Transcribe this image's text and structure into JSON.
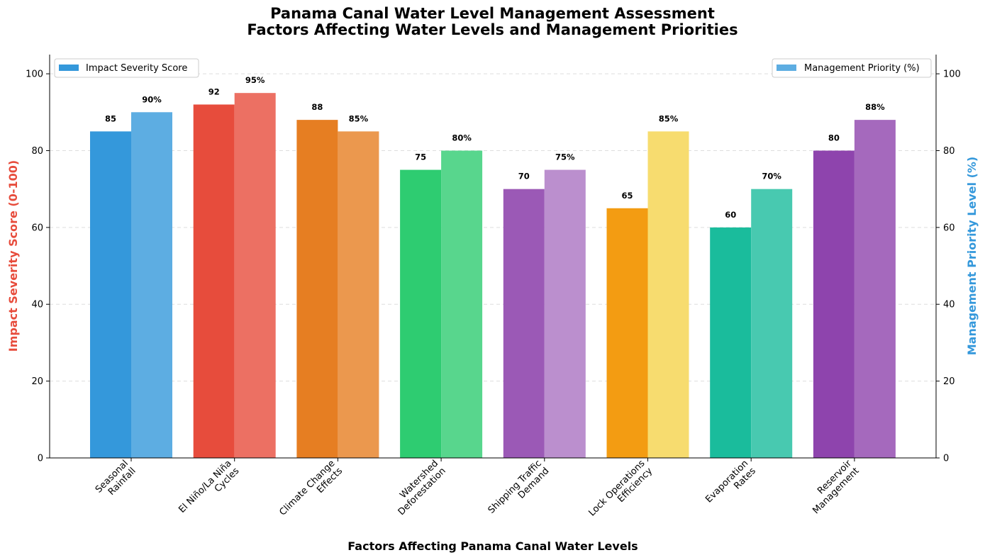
{
  "chart_data": {
    "type": "bar",
    "title": "Panama Canal Water Level Management Assessment",
    "subtitle": "Factors Affecting Water Levels and Management Priorities",
    "xlabel": "Factors Affecting Panama Canal Water Levels",
    "ylabel_left": "Impact Severity Score (0-100)",
    "ylabel_right": "Management Priority Level (%)",
    "ylim": [
      0,
      105
    ],
    "yticks": [
      0,
      20,
      40,
      60,
      80,
      100
    ],
    "grid": true,
    "categories": [
      [
        "Seasonal",
        "Rainfall"
      ],
      [
        "El Niño/La Niña",
        "Cycles"
      ],
      [
        "Climate Change",
        "Effects"
      ],
      [
        "Watershed",
        "Deforestation"
      ],
      [
        "Shipping Traffic",
        "Demand"
      ],
      [
        "Lock Operations",
        "Efficiency"
      ],
      [
        "Evaporation",
        "Rates"
      ],
      [
        "Reservoir",
        "Management"
      ]
    ],
    "series": [
      {
        "name": "Impact Severity Score",
        "axis": "left",
        "values": [
          85,
          92,
          88,
          75,
          70,
          65,
          60,
          80
        ],
        "labels": [
          "85",
          "92",
          "88",
          "75",
          "70",
          "65",
          "60",
          "80"
        ],
        "colors": [
          "#3498db",
          "#e74c3c",
          "#e67e22",
          "#2ecc71",
          "#9b59b6",
          "#f39c12",
          "#1abc9c",
          "#8e44ad"
        ],
        "legend_color": "#3498db",
        "legend_position": "upper-left"
      },
      {
        "name": "Management Priority (%)",
        "axis": "right",
        "values": [
          90,
          95,
          85,
          80,
          75,
          85,
          70,
          88
        ],
        "labels": [
          "90%",
          "95%",
          "85%",
          "80%",
          "75%",
          "85%",
          "70%",
          "88%"
        ],
        "colors": [
          "#5dade2",
          "#ec7063",
          "#eb984e",
          "#58d68d",
          "#bb8fce",
          "#f7dc6f",
          "#48c9b0",
          "#a569bd"
        ],
        "legend_color": "#5dade2",
        "legend_position": "upper-right"
      }
    ],
    "colors": {
      "left_axis_title": "#e74c3c",
      "right_axis_title": "#3498db",
      "grid": "#dddddd",
      "axis": "#000000"
    }
  }
}
